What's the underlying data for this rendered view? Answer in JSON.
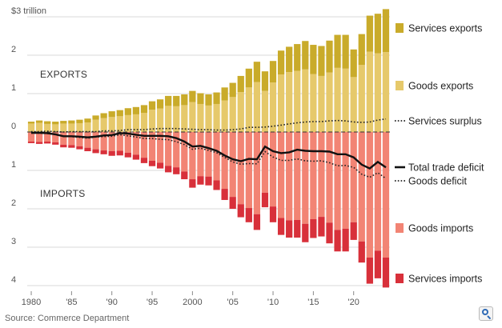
{
  "source": "Source: Commerce Department",
  "chart_data": {
    "type": "bar",
    "title": "",
    "xlabel": "",
    "ylabel": "",
    "ylim": [
      -4.2,
      3.2
    ],
    "y_ticks": [
      {
        "value": 3,
        "label": "$3 trillion"
      },
      {
        "value": 2,
        "label": "2"
      },
      {
        "value": 1,
        "label": "1"
      },
      {
        "value": 0,
        "label": "0"
      },
      {
        "value": -1,
        "label": "1"
      },
      {
        "value": -2,
        "label": "2"
      },
      {
        "value": -3,
        "label": "3"
      },
      {
        "value": -4,
        "label": "4"
      }
    ],
    "x_ticks": [
      {
        "year": 1980,
        "label": "1980"
      },
      {
        "year": 1985,
        "label": "'85"
      },
      {
        "year": 1990,
        "label": "'90"
      },
      {
        "year": 1995,
        "label": "'95"
      },
      {
        "year": 2000,
        "label": "2000"
      },
      {
        "year": 2005,
        "label": "'05"
      },
      {
        "year": 2010,
        "label": "'10"
      },
      {
        "year": 2015,
        "label": "'15"
      },
      {
        "year": 2020,
        "label": "'20"
      }
    ],
    "annotations": {
      "exports": "EXPORTS",
      "imports": "IMPORTS"
    },
    "categories": [
      1980,
      1981,
      1982,
      1983,
      1984,
      1985,
      1986,
      1987,
      1988,
      1989,
      1990,
      1991,
      1992,
      1993,
      1994,
      1995,
      1996,
      1997,
      1998,
      1999,
      2000,
      2001,
      2002,
      2003,
      2004,
      2005,
      2006,
      2007,
      2008,
      2009,
      2010,
      2011,
      2012,
      2013,
      2014,
      2015,
      2016,
      2017,
      2018,
      2019,
      2020,
      2021,
      2022,
      2023,
      2024
    ],
    "series": [
      {
        "name": "Goods exports",
        "color": "#e6c96b",
        "values": [
          0.22,
          0.24,
          0.21,
          0.2,
          0.22,
          0.22,
          0.23,
          0.25,
          0.32,
          0.36,
          0.39,
          0.41,
          0.44,
          0.46,
          0.5,
          0.58,
          0.61,
          0.68,
          0.67,
          0.7,
          0.78,
          0.73,
          0.69,
          0.73,
          0.82,
          0.91,
          1.04,
          1.16,
          1.3,
          1.07,
          1.29,
          1.5,
          1.56,
          1.59,
          1.63,
          1.51,
          1.46,
          1.55,
          1.67,
          1.65,
          1.43,
          1.75,
          2.09,
          2.05,
          2.08
        ]
      },
      {
        "name": "Services exports",
        "color": "#c9ab2a",
        "values": [
          0.05,
          0.06,
          0.07,
          0.07,
          0.07,
          0.08,
          0.09,
          0.1,
          0.11,
          0.13,
          0.15,
          0.16,
          0.18,
          0.19,
          0.2,
          0.22,
          0.24,
          0.26,
          0.27,
          0.28,
          0.29,
          0.28,
          0.29,
          0.3,
          0.34,
          0.37,
          0.42,
          0.49,
          0.53,
          0.51,
          0.56,
          0.62,
          0.66,
          0.7,
          0.74,
          0.76,
          0.78,
          0.83,
          0.86,
          0.88,
          0.72,
          0.8,
          0.94,
          1.03,
          1.12
        ]
      },
      {
        "name": "Goods imports",
        "color": "#f28474",
        "values": [
          -0.25,
          -0.26,
          -0.25,
          -0.27,
          -0.33,
          -0.34,
          -0.37,
          -0.41,
          -0.45,
          -0.48,
          -0.5,
          -0.49,
          -0.54,
          -0.59,
          -0.67,
          -0.75,
          -0.8,
          -0.88,
          -0.92,
          -1.03,
          -1.23,
          -1.15,
          -1.16,
          -1.26,
          -1.48,
          -1.69,
          -1.88,
          -1.98,
          -2.14,
          -1.58,
          -1.94,
          -2.24,
          -2.3,
          -2.29,
          -2.39,
          -2.27,
          -2.21,
          -2.36,
          -2.55,
          -2.52,
          -2.35,
          -2.85,
          -3.27,
          -3.09,
          -3.27
        ]
      },
      {
        "name": "Services imports",
        "color": "#d8303a",
        "values": [
          -0.04,
          -0.05,
          -0.05,
          -0.06,
          -0.07,
          -0.07,
          -0.08,
          -0.09,
          -0.1,
          -0.1,
          -0.12,
          -0.12,
          -0.12,
          -0.13,
          -0.14,
          -0.14,
          -0.15,
          -0.17,
          -0.18,
          -0.2,
          -0.22,
          -0.22,
          -0.23,
          -0.25,
          -0.29,
          -0.31,
          -0.34,
          -0.37,
          -0.41,
          -0.38,
          -0.41,
          -0.44,
          -0.45,
          -0.46,
          -0.48,
          -0.49,
          -0.51,
          -0.54,
          -0.56,
          -0.59,
          -0.46,
          -0.55,
          -0.68,
          -0.72,
          -0.78
        ]
      },
      {
        "name": "Services surplus",
        "color": "#222222",
        "style": "dotted",
        "values": [
          0.01,
          0.01,
          0.02,
          0.01,
          0.0,
          0.01,
          0.01,
          0.01,
          0.01,
          0.03,
          0.03,
          0.04,
          0.06,
          0.06,
          0.06,
          0.08,
          0.09,
          0.09,
          0.09,
          0.08,
          0.07,
          0.06,
          0.06,
          0.05,
          0.05,
          0.06,
          0.08,
          0.12,
          0.12,
          0.13,
          0.15,
          0.18,
          0.21,
          0.24,
          0.26,
          0.27,
          0.27,
          0.29,
          0.3,
          0.29,
          0.26,
          0.25,
          0.26,
          0.31,
          0.34
        ]
      },
      {
        "name": "Total trade deficit",
        "color": "#111111",
        "style": "solid",
        "values": [
          -0.02,
          -0.02,
          -0.03,
          -0.06,
          -0.11,
          -0.11,
          -0.12,
          -0.14,
          -0.12,
          -0.09,
          -0.08,
          -0.03,
          -0.04,
          -0.07,
          -0.1,
          -0.1,
          -0.1,
          -0.11,
          -0.16,
          -0.25,
          -0.38,
          -0.36,
          -0.42,
          -0.49,
          -0.61,
          -0.71,
          -0.76,
          -0.7,
          -0.71,
          -0.38,
          -0.5,
          -0.55,
          -0.53,
          -0.46,
          -0.49,
          -0.5,
          -0.5,
          -0.51,
          -0.58,
          -0.58,
          -0.66,
          -0.85,
          -0.95,
          -0.78,
          -0.92
        ]
      },
      {
        "name": "Goods deficit",
        "color": "#222222",
        "style": "dotted",
        "values": [
          -0.03,
          -0.03,
          -0.04,
          -0.07,
          -0.11,
          -0.12,
          -0.14,
          -0.16,
          -0.13,
          -0.12,
          -0.11,
          -0.07,
          -0.1,
          -0.13,
          -0.17,
          -0.17,
          -0.19,
          -0.2,
          -0.25,
          -0.33,
          -0.45,
          -0.42,
          -0.48,
          -0.54,
          -0.66,
          -0.78,
          -0.84,
          -0.82,
          -0.83,
          -0.51,
          -0.65,
          -0.74,
          -0.74,
          -0.7,
          -0.75,
          -0.76,
          -0.75,
          -0.8,
          -0.88,
          -0.87,
          -0.92,
          -1.1,
          -1.18,
          -1.06,
          -1.21
        ]
      }
    ],
    "legend": [
      {
        "label": "Services exports",
        "marker": "box",
        "color": "#c9ab2a"
      },
      {
        "label": "Goods exports",
        "marker": "box",
        "color": "#e6c96b"
      },
      {
        "label": "Services surplus",
        "marker": "dotted",
        "color": "#222222"
      },
      {
        "label": "Total trade deficit",
        "marker": "solid",
        "color": "#111111"
      },
      {
        "label": "Goods deficit",
        "marker": "dotted",
        "color": "#222222"
      },
      {
        "label": "Goods imports",
        "marker": "box",
        "color": "#f28474"
      },
      {
        "label": "Services imports",
        "marker": "box",
        "color": "#d8303a"
      }
    ]
  }
}
